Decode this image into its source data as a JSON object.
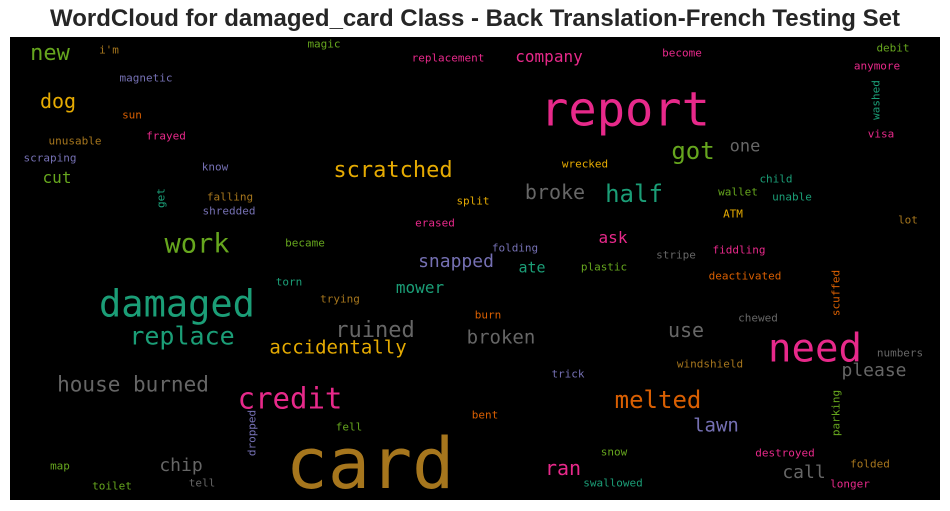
{
  "chart_data": {
    "type": "wordcloud",
    "title": "WordCloud for damaged_card Class - Back Translation-French Testing Set",
    "words": [
      {
        "text": "card",
        "weight": 100,
        "color": "#a6761d",
        "orientation": "horizontal"
      },
      {
        "text": "report",
        "weight": 71,
        "color": "#e7298a",
        "orientation": "horizontal"
      },
      {
        "text": "need",
        "weight": 58,
        "color": "#e7298a",
        "orientation": "horizontal"
      },
      {
        "text": "damaged",
        "weight": 55,
        "color": "#1b9e77",
        "orientation": "horizontal"
      },
      {
        "text": "credit",
        "weight": 43,
        "color": "#e7298a",
        "orientation": "horizontal"
      },
      {
        "text": "work",
        "weight": 40,
        "color": "#66a61e",
        "orientation": "horizontal"
      },
      {
        "text": "replace",
        "weight": 37,
        "color": "#1b9e77",
        "orientation": "horizontal"
      },
      {
        "text": "melted",
        "weight": 36,
        "color": "#d95f02",
        "orientation": "horizontal"
      },
      {
        "text": "half",
        "weight": 35,
        "color": "#1b9e77",
        "orientation": "horizontal"
      },
      {
        "text": "got",
        "weight": 35,
        "color": "#66a61e",
        "orientation": "horizontal"
      },
      {
        "text": "new",
        "weight": 33,
        "color": "#66a61e",
        "orientation": "horizontal"
      },
      {
        "text": "ruined",
        "weight": 32,
        "color": "#666666",
        "orientation": "horizontal"
      },
      {
        "text": "scratched",
        "weight": 32,
        "color": "#e6ab02",
        "orientation": "horizontal"
      },
      {
        "text": "house burned",
        "weight": 31,
        "color": "#666666",
        "orientation": "horizontal"
      },
      {
        "text": "dog",
        "weight": 30,
        "color": "#e6ab02",
        "orientation": "horizontal"
      },
      {
        "text": "broke",
        "weight": 30,
        "color": "#666666",
        "orientation": "horizontal"
      },
      {
        "text": "use",
        "weight": 30,
        "color": "#666666",
        "orientation": "horizontal"
      },
      {
        "text": "ran",
        "weight": 29,
        "color": "#e7298a",
        "orientation": "horizontal"
      },
      {
        "text": "accidentally",
        "weight": 28,
        "color": "#e6ab02",
        "orientation": "horizontal"
      },
      {
        "text": "broken",
        "weight": 28,
        "color": "#666666",
        "orientation": "horizontal"
      },
      {
        "text": "lawn",
        "weight": 28,
        "color": "#7570b3",
        "orientation": "horizontal"
      },
      {
        "text": "chip",
        "weight": 27,
        "color": "#666666",
        "orientation": "horizontal"
      },
      {
        "text": "call",
        "weight": 27,
        "color": "#666666",
        "orientation": "horizontal"
      },
      {
        "text": "snapped",
        "weight": 26,
        "color": "#7570b3",
        "orientation": "horizontal"
      },
      {
        "text": "please",
        "weight": 26,
        "color": "#666666",
        "orientation": "horizontal"
      },
      {
        "text": "one",
        "weight": 25,
        "color": "#666666",
        "orientation": "horizontal"
      },
      {
        "text": "mower",
        "weight": 24,
        "color": "#1b9e77",
        "orientation": "horizontal"
      },
      {
        "text": "company",
        "weight": 24,
        "color": "#e7298a",
        "orientation": "horizontal"
      },
      {
        "text": "ask",
        "weight": 24,
        "color": "#e7298a",
        "orientation": "horizontal"
      },
      {
        "text": "ate",
        "weight": 22,
        "color": "#1b9e77",
        "orientation": "horizontal"
      },
      {
        "text": "cut",
        "weight": 24,
        "color": "#66a61e",
        "orientation": "horizontal"
      },
      {
        "text": "magic",
        "weight": 16,
        "color": "#66a61e",
        "orientation": "horizontal"
      },
      {
        "text": "i'm",
        "weight": 16,
        "color": "#a6761d",
        "orientation": "horizontal"
      },
      {
        "text": "magnetic",
        "weight": 16,
        "color": "#7570b3",
        "orientation": "horizontal"
      },
      {
        "text": "replacement",
        "weight": 16,
        "color": "#e7298a",
        "orientation": "horizontal"
      },
      {
        "text": "become",
        "weight": 16,
        "color": "#e7298a",
        "orientation": "horizontal"
      },
      {
        "text": "debit",
        "weight": 16,
        "color": "#66a61e",
        "orientation": "horizontal"
      },
      {
        "text": "anymore",
        "weight": 16,
        "color": "#e7298a",
        "orientation": "horizontal"
      },
      {
        "text": "washed",
        "weight": 16,
        "color": "#1b9e77",
        "orientation": "vertical"
      },
      {
        "text": "sun",
        "weight": 16,
        "color": "#d95f02",
        "orientation": "horizontal"
      },
      {
        "text": "unusable",
        "weight": 16,
        "color": "#a6761d",
        "orientation": "horizontal"
      },
      {
        "text": "frayed",
        "weight": 16,
        "color": "#e7298a",
        "orientation": "horizontal"
      },
      {
        "text": "visa",
        "weight": 16,
        "color": "#e7298a",
        "orientation": "horizontal"
      },
      {
        "text": "scraping",
        "weight": 16,
        "color": "#7570b3",
        "orientation": "horizontal"
      },
      {
        "text": "know",
        "weight": 16,
        "color": "#7570b3",
        "orientation": "horizontal"
      },
      {
        "text": "wrecked",
        "weight": 16,
        "color": "#e6ab02",
        "orientation": "horizontal"
      },
      {
        "text": "child",
        "weight": 16,
        "color": "#1b9e77",
        "orientation": "horizontal"
      },
      {
        "text": "get",
        "weight": 16,
        "color": "#1b9e77",
        "orientation": "vertical"
      },
      {
        "text": "falling",
        "weight": 16,
        "color": "#a6761d",
        "orientation": "horizontal"
      },
      {
        "text": "shredded",
        "weight": 16,
        "color": "#7570b3",
        "orientation": "horizontal"
      },
      {
        "text": "split",
        "weight": 16,
        "color": "#e6ab02",
        "orientation": "horizontal"
      },
      {
        "text": "wallet",
        "weight": 16,
        "color": "#66a61e",
        "orientation": "horizontal"
      },
      {
        "text": "unable",
        "weight": 16,
        "color": "#1b9e77",
        "orientation": "horizontal"
      },
      {
        "text": "ATM",
        "weight": 16,
        "color": "#e6ab02",
        "orientation": "horizontal"
      },
      {
        "text": "lot",
        "weight": 16,
        "color": "#a6761d",
        "orientation": "horizontal"
      },
      {
        "text": "erased",
        "weight": 16,
        "color": "#e7298a",
        "orientation": "horizontal"
      },
      {
        "text": "became",
        "weight": 16,
        "color": "#66a61e",
        "orientation": "horizontal"
      },
      {
        "text": "folding",
        "weight": 16,
        "color": "#7570b3",
        "orientation": "horizontal"
      },
      {
        "text": "fiddling",
        "weight": 16,
        "color": "#e7298a",
        "orientation": "horizontal"
      },
      {
        "text": "stripe",
        "weight": 16,
        "color": "#666666",
        "orientation": "horizontal"
      },
      {
        "text": "plastic",
        "weight": 16,
        "color": "#66a61e",
        "orientation": "horizontal"
      },
      {
        "text": "deactivated",
        "weight": 16,
        "color": "#d95f02",
        "orientation": "horizontal"
      },
      {
        "text": "torn",
        "weight": 16,
        "color": "#1b9e77",
        "orientation": "horizontal"
      },
      {
        "text": "scuffed",
        "weight": 16,
        "color": "#d95f02",
        "orientation": "vertical"
      },
      {
        "text": "trying",
        "weight": 16,
        "color": "#a6761d",
        "orientation": "horizontal"
      },
      {
        "text": "burn",
        "weight": 16,
        "color": "#d95f02",
        "orientation": "horizontal"
      },
      {
        "text": "chewed",
        "weight": 16,
        "color": "#666666",
        "orientation": "horizontal"
      },
      {
        "text": "numbers",
        "weight": 16,
        "color": "#666666",
        "orientation": "horizontal"
      },
      {
        "text": "windshield",
        "weight": 16,
        "color": "#a6761d",
        "orientation": "horizontal"
      },
      {
        "text": "trick",
        "weight": 16,
        "color": "#7570b3",
        "orientation": "horizontal"
      },
      {
        "text": "parking",
        "weight": 16,
        "color": "#66a61e",
        "orientation": "vertical"
      },
      {
        "text": "bent",
        "weight": 16,
        "color": "#d95f02",
        "orientation": "horizontal"
      },
      {
        "text": "fell",
        "weight": 16,
        "color": "#66a61e",
        "orientation": "horizontal"
      },
      {
        "text": "dropped",
        "weight": 16,
        "color": "#7570b3",
        "orientation": "vertical"
      },
      {
        "text": "snow",
        "weight": 16,
        "color": "#66a61e",
        "orientation": "horizontal"
      },
      {
        "text": "destroyed",
        "weight": 16,
        "color": "#e7298a",
        "orientation": "horizontal"
      },
      {
        "text": "folded",
        "weight": 16,
        "color": "#a6761d",
        "orientation": "horizontal"
      },
      {
        "text": "map",
        "weight": 16,
        "color": "#66a61e",
        "orientation": "horizontal"
      },
      {
        "text": "toilet",
        "weight": 16,
        "color": "#66a61e",
        "orientation": "horizontal"
      },
      {
        "text": "tell",
        "weight": 16,
        "color": "#666666",
        "orientation": "horizontal"
      },
      {
        "text": "swallowed",
        "weight": 16,
        "color": "#1b9e77",
        "orientation": "horizontal"
      },
      {
        "text": "longer",
        "weight": 16,
        "color": "#e7298a",
        "orientation": "horizontal"
      }
    ]
  }
}
